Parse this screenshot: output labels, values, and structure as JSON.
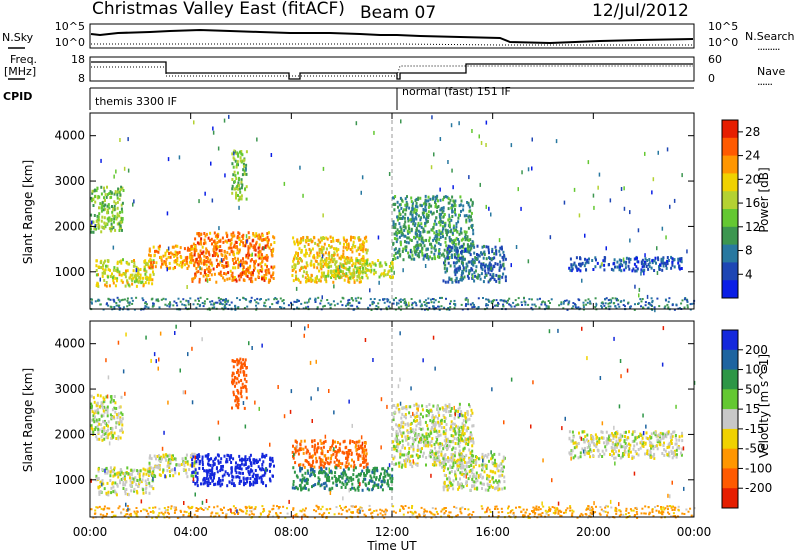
{
  "header": {
    "station": "Christmas Valley East (fitACF)",
    "beam": "Beam 07",
    "date": "12/Jul/2012"
  },
  "status_panels": {
    "nsky_label": "N.Sky",
    "nsky_ticks": [
      "10^5",
      "10^0"
    ],
    "nsearch_label": "N.Search",
    "nsearch_ticks": [
      "10^5",
      "10^0"
    ],
    "freq_label_1": "Freq.",
    "freq_label_2": "[MHz]",
    "freq_ticks": [
      "18",
      "8"
    ],
    "nave_label": "Nave",
    "nave_ticks": [
      "60",
      "0"
    ],
    "cpid_label": "CPID",
    "cpid_modes": [
      "themis 3300 IF",
      "normal (fast) 151 IF"
    ]
  },
  "chart_data": [
    {
      "type": "heatmap",
      "name": "power",
      "xlabel": "Time UT",
      "ylabel": "Slant Range [km]",
      "x_range_hours": [
        0,
        24
      ],
      "ylim": [
        180,
        4500
      ],
      "xticks": [
        "00:00",
        "04:00",
        "08:00",
        "12:00",
        "16:00",
        "20:00",
        "00:00"
      ],
      "yticks": [
        1000,
        2000,
        3000,
        4000
      ],
      "colorbar_label": "Power [dB]",
      "colorbar_ticks": [
        4,
        8,
        12,
        16,
        20,
        24,
        28
      ],
      "colorbar_range": [
        0,
        30
      ],
      "colors": [
        "#0a1ee6",
        "#1e46b4",
        "#2878a0",
        "#3c9650",
        "#64c832",
        "#b4d232",
        "#f0d200",
        "#ff9600",
        "#ff5a00",
        "#e61e00"
      ],
      "features": [
        {
          "t0": 0.0,
          "t1": 1.3,
          "r0": 1900,
          "r1": 2900,
          "level": 14
        },
        {
          "t0": 0.2,
          "t1": 2.5,
          "r0": 700,
          "r1": 1300,
          "level": 18
        },
        {
          "t0": 2.3,
          "t1": 4.2,
          "r0": 1100,
          "r1": 1600,
          "level": 22
        },
        {
          "t0": 4.0,
          "t1": 7.3,
          "r0": 800,
          "r1": 1900,
          "level": 24
        },
        {
          "t0": 5.6,
          "t1": 6.2,
          "r0": 2600,
          "r1": 3700,
          "level": 14
        },
        {
          "t0": 8.0,
          "t1": 11.0,
          "r0": 800,
          "r1": 1800,
          "level": 20
        },
        {
          "t0": 9.3,
          "t1": 12.0,
          "r0": 900,
          "r1": 1300,
          "level": 16
        },
        {
          "t0": 12.0,
          "t1": 15.2,
          "r0": 1300,
          "r1": 2700,
          "level": 10
        },
        {
          "t0": 14.0,
          "t1": 16.5,
          "r0": 800,
          "r1": 1600,
          "level": 7
        },
        {
          "t0": 19.0,
          "t1": 23.5,
          "r0": 1050,
          "r1": 1350,
          "level": 5
        }
      ],
      "ground_scatter": {
        "t0": 0.0,
        "t1": 24.0,
        "r0": 180,
        "r1": 450,
        "level": 8
      }
    },
    {
      "type": "heatmap",
      "name": "velocity",
      "xlabel": "Time UT",
      "ylabel": "Slant Range [km]",
      "x_range_hours": [
        0,
        24
      ],
      "ylim": [
        180,
        4500
      ],
      "xticks": [
        "00:00",
        "04:00",
        "08:00",
        "12:00",
        "16:00",
        "20:00",
        "00:00"
      ],
      "yticks": [
        1000,
        2000,
        3000,
        4000
      ],
      "colorbar_label": "Velocity [m s^-1]",
      "colorbar_ticks": [
        "200",
        "100",
        "50",
        "15",
        "-15",
        "-50",
        "-100",
        "-200"
      ],
      "colors": [
        "#1428dc",
        "#1e64a0",
        "#2d9646",
        "#64c832",
        "#c8c8c8",
        "#f0d200",
        "#ff9600",
        "#ff5a00",
        "#e61e00"
      ],
      "features": [
        {
          "t0": 0.0,
          "t1": 1.3,
          "r0": 1900,
          "r1": 2900,
          "vel": 0
        },
        {
          "t0": 0.2,
          "t1": 2.5,
          "r0": 700,
          "r1": 1300,
          "vel": 0
        },
        {
          "t0": 2.3,
          "t1": 4.2,
          "r0": 1100,
          "r1": 1600,
          "vel": 0
        },
        {
          "t0": 4.0,
          "t1": 7.3,
          "r0": 900,
          "r1": 1600,
          "vel": 180
        },
        {
          "t0": 5.6,
          "t1": 6.2,
          "r0": 2600,
          "r1": 3700,
          "vel": -120
        },
        {
          "t0": 8.0,
          "t1": 11.0,
          "r0": 1300,
          "r1": 1900,
          "vel": -90
        },
        {
          "t0": 8.0,
          "t1": 12.0,
          "r0": 800,
          "r1": 1300,
          "vel": 60
        },
        {
          "t0": 12.0,
          "t1": 15.2,
          "r0": 1300,
          "r1": 2700,
          "vel": 0
        },
        {
          "t0": 14.0,
          "t1": 16.5,
          "r0": 800,
          "r1": 1600,
          "vel": 0
        },
        {
          "t0": 19.0,
          "t1": 23.5,
          "r0": 1500,
          "r1": 2100,
          "vel": 0
        }
      ],
      "ground_scatter": {
        "t0": 0.0,
        "t1": 24.0,
        "r0": 180,
        "r1": 450,
        "vel": -40
      }
    }
  ]
}
